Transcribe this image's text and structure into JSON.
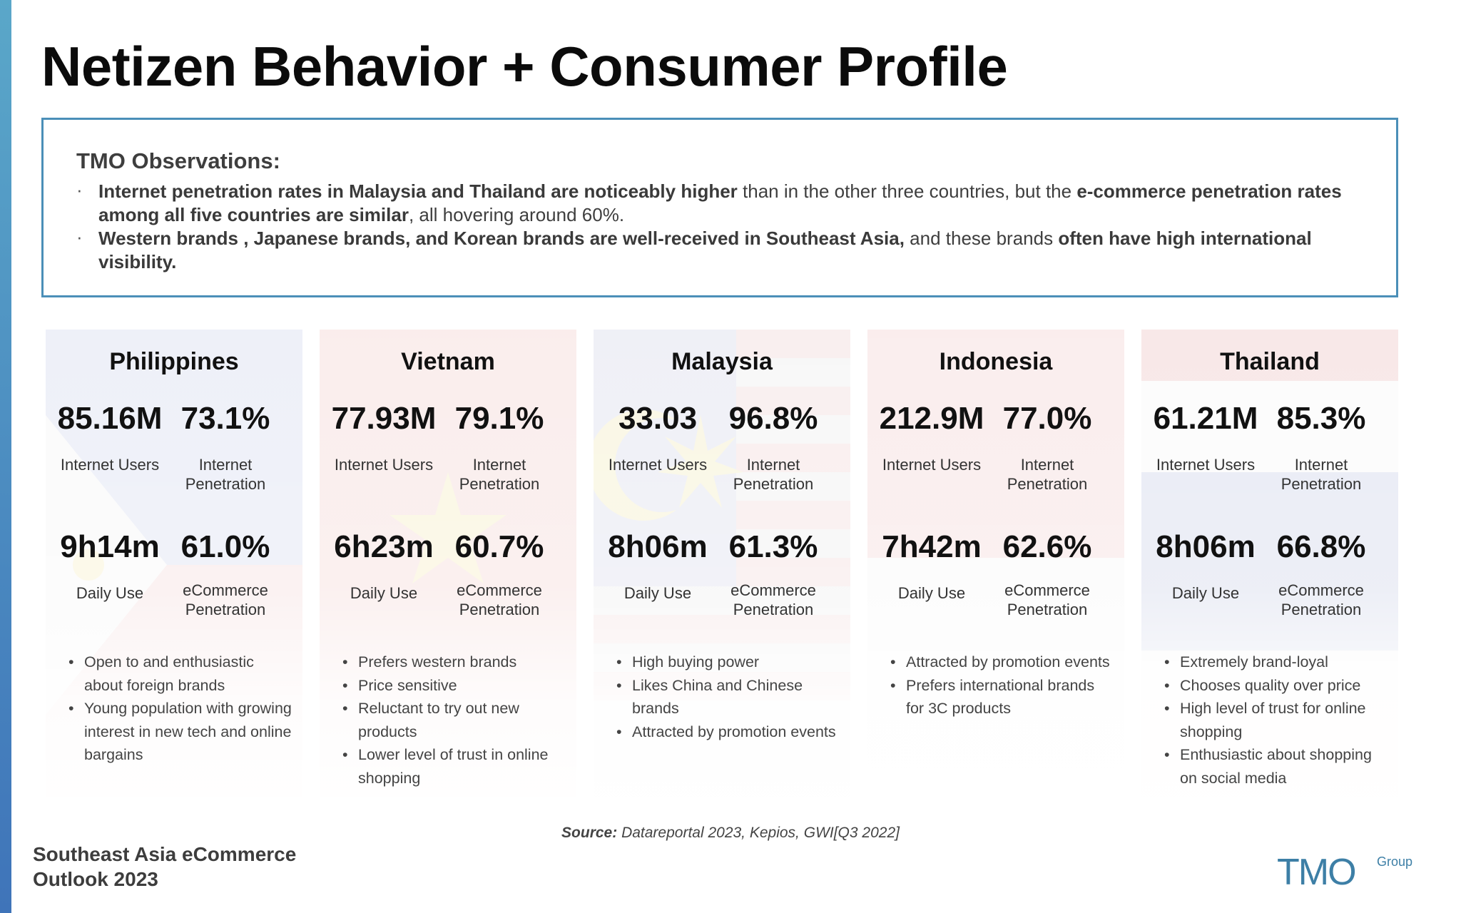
{
  "title": "Netizen Behavior + Consumer Profile",
  "observations": {
    "heading": "TMO Observations:",
    "item1": {
      "b1": "Internet penetration rates in Malaysia and Thailand are noticeably higher",
      "t1": " than in the other three countries, but the ",
      "b2": "e-commerce penetration rates among all five countries are similar",
      "t2": ", all hovering around 60%."
    },
    "item2": {
      "b1": "Western brands , Japanese brands, and Korean brands are well-received in Southeast Asia,",
      "t1": " and these brands ",
      "b2": "often have high international visibility."
    }
  },
  "labels": {
    "internet_users": "Internet Users",
    "internet_penetration": "Internet Penetration",
    "daily_use": "Daily Use",
    "ecommerce_penetration": "eCommerce Penetration"
  },
  "countries": [
    {
      "name": "Philippines",
      "internet_users": "85.16M",
      "internet_penetration": "73.1%",
      "daily_use": "9h14m",
      "ecommerce_penetration": "61.0%",
      "bullets": [
        "Open to and enthusiastic about foreign brands",
        "Young population with growing interest in new tech and online bargains"
      ]
    },
    {
      "name": "Vietnam",
      "internet_users": "77.93M",
      "internet_penetration": "79.1%",
      "daily_use": "6h23m",
      "ecommerce_penetration": "60.7%",
      "bullets": [
        "Prefers western brands",
        "Price sensitive",
        "Reluctant to try out new products",
        "Lower level of trust in online shopping"
      ]
    },
    {
      "name": "Malaysia",
      "internet_users": "33.03",
      "internet_penetration": "96.8%",
      "daily_use": "8h06m",
      "ecommerce_penetration": "61.3%",
      "bullets": [
        "High buying power",
        "Likes China and Chinese brands",
        "Attracted by promotion events"
      ]
    },
    {
      "name": "Indonesia",
      "internet_users": "212.9M",
      "internet_penetration": "77.0%",
      "daily_use": "7h42m",
      "ecommerce_penetration": "62.6%",
      "bullets": [
        "Attracted by promotion events",
        "Prefers international brands for 3C products"
      ]
    },
    {
      "name": "Thailand",
      "internet_users": "61.21M",
      "internet_penetration": "85.3%",
      "daily_use": "8h06m",
      "ecommerce_penetration": "66.8%",
      "bullets": [
        "Extremely brand-loyal",
        "Chooses quality over price",
        "High level of trust for online shopping",
        "Enthusiastic about shopping on social media"
      ]
    }
  ],
  "source": {
    "label": "Source:",
    "text": " Datareportal 2023, Kepios, GWI[Q3 2022]"
  },
  "footer_title": "Southeast Asia eCommerce Outlook 2023",
  "logo": {
    "main": "TMO",
    "sub": "Group",
    "color": "#3d7fa6"
  }
}
